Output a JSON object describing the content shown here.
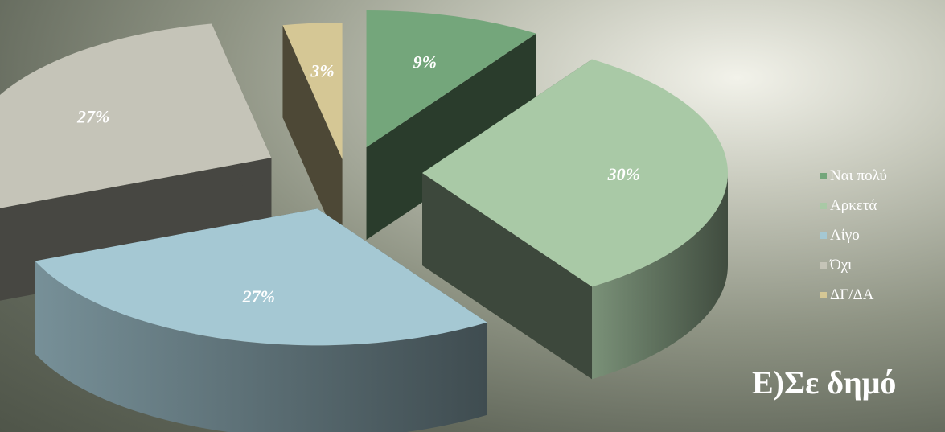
{
  "chart_data": {
    "type": "pie",
    "title": "",
    "subtitle_visible": "Ε)Σε δημό",
    "legend_position": "right",
    "slices": [
      {
        "name": "Ναι πολύ",
        "value": 9,
        "label": "9%",
        "color": "#74a67b"
      },
      {
        "name": "Αρκετά",
        "value": 30,
        "label": "30%",
        "color": "#a9c9a6"
      },
      {
        "name": "Λίγο",
        "value": 27,
        "label": "27%",
        "color": "#a5c8d3"
      },
      {
        "name": "Όχι",
        "value": 27,
        "label": "27%",
        "color": "#c5c4b8"
      },
      {
        "name": "ΔΓ/ΔΑ",
        "value": 3,
        "label": "3%",
        "color": "#d5c795"
      }
    ]
  },
  "legend": {
    "items": [
      "Ναι πολύ",
      "Αρκετά",
      "Λίγο",
      "Όχι",
      "ΔΓ/ΔΑ"
    ]
  }
}
